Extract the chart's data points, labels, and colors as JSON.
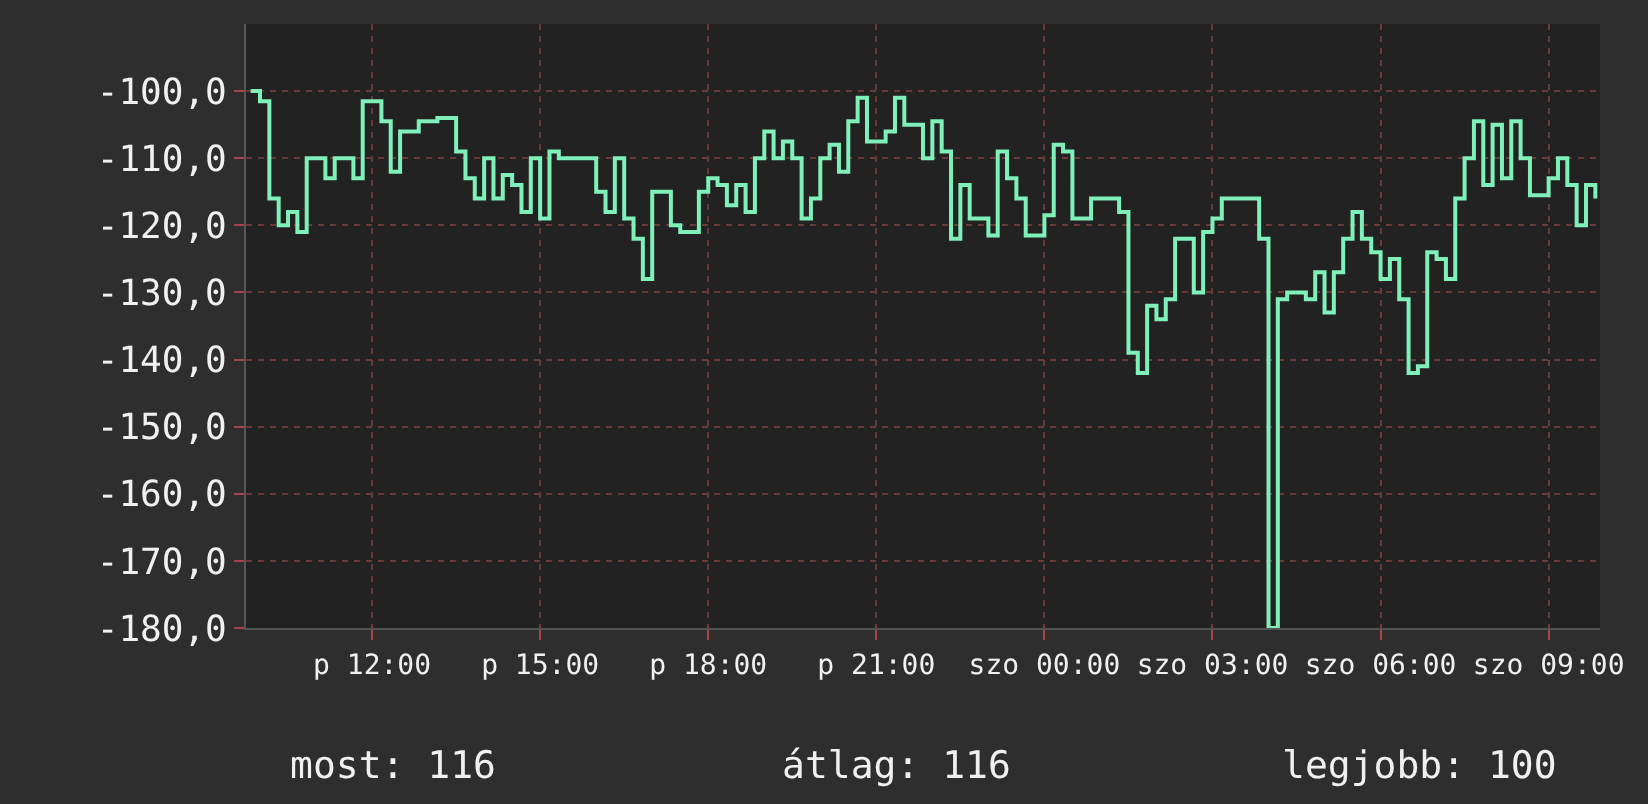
{
  "chart_data": {
    "type": "step",
    "categories": [
      null,
      null,
      null,
      null,
      null,
      null,
      null,
      null,
      null,
      null,
      null,
      null,
      null,
      "p 12:00",
      null,
      null,
      null,
      null,
      null,
      null,
      null,
      null,
      null,
      null,
      null,
      null,
      null,
      null,
      null,
      null,
      null,
      "p 15:00",
      null,
      null,
      null,
      null,
      null,
      null,
      null,
      null,
      null,
      null,
      null,
      null,
      null,
      null,
      null,
      null,
      null,
      "p 18:00",
      null,
      null,
      null,
      null,
      null,
      null,
      null,
      null,
      null,
      null,
      null,
      null,
      null,
      null,
      null,
      null,
      null,
      "p 21:00",
      null,
      null,
      null,
      null,
      null,
      null,
      null,
      null,
      null,
      null,
      null,
      null,
      null,
      null,
      null,
      null,
      null,
      "szo 00:00",
      null,
      null,
      null,
      null,
      null,
      null,
      null,
      null,
      null,
      null,
      null,
      null,
      null,
      null,
      null,
      null,
      null,
      "szo 03:00",
      null,
      null,
      null,
      null,
      null,
      null,
      null,
      null,
      null,
      null,
      null,
      null,
      null,
      null,
      null,
      null,
      null,
      "szo 06:00",
      null,
      null,
      null,
      null,
      null,
      null,
      null,
      null,
      null,
      null,
      null,
      null,
      null,
      null,
      null,
      null,
      null,
      "szo 09:00",
      null,
      null,
      null,
      null,
      null
    ],
    "series": [
      {
        "color": "#7ef0b8",
        "values": [
          -100,
          -101.5,
          -116,
          -120,
          -118,
          -121,
          -110,
          -110,
          -113,
          -110,
          -110,
          -113,
          -101.5,
          -101.5,
          -104.5,
          -112,
          -106,
          -106,
          -104.5,
          -104.5,
          -104,
          -104,
          -109,
          -113,
          -116,
          -110,
          -116,
          -112.5,
          -114,
          -118,
          -110,
          -119,
          -109,
          -110,
          -110,
          -110,
          -110,
          -115,
          -118,
          -110,
          -119,
          -122,
          -128,
          -115,
          -115,
          -120,
          -121,
          -121,
          -115,
          -113,
          -114,
          -117,
          -114,
          -118,
          -110,
          -106,
          -110,
          -107.5,
          -110,
          -119,
          -116,
          -110,
          -108,
          -112,
          -104.5,
          -101,
          -107.5,
          -107.5,
          -106,
          -101,
          -105,
          -105,
          -110,
          -104.5,
          -109,
          -122,
          -114,
          -119,
          -119,
          -121.5,
          -109,
          -113,
          -116,
          -121.5,
          -121.5,
          -118.5,
          -108,
          -109,
          -119,
          -119,
          -116,
          -116,
          -116,
          -118,
          -139,
          -142,
          -132,
          -134,
          -131,
          -122,
          -122,
          -130,
          -121,
          -119,
          -116,
          -116,
          -116,
          -116,
          -122,
          -180,
          -131,
          -130,
          -130,
          -131,
          -127,
          -133,
          -127,
          -122,
          -118,
          -122,
          -124,
          -128,
          -125,
          -131,
          -142,
          -141,
          -124,
          -125,
          -128,
          -116,
          -110,
          -104.5,
          -114,
          -105,
          -113,
          -104.5,
          -110,
          -115.5,
          -115.5,
          -113,
          -110,
          -114,
          -120,
          -114,
          -116
        ]
      }
    ],
    "ylim": [
      -180,
      -90
    ],
    "yticks": [
      {
        "value": -100,
        "label": "-100,0"
      },
      {
        "value": -110,
        "label": "-110,0"
      },
      {
        "value": -120,
        "label": "-120,0"
      },
      {
        "value": -130,
        "label": "-130,0"
      },
      {
        "value": -140,
        "label": "-140,0"
      },
      {
        "value": -150,
        "label": "-150,0"
      },
      {
        "value": -160,
        "label": "-160,0"
      },
      {
        "value": -170,
        "label": "-170,0"
      },
      {
        "value": -180,
        "label": "-180,0"
      }
    ],
    "grid": true,
    "annotations": [
      "most: 116",
      "átlag: 116",
      "legjobb: 100"
    ]
  }
}
